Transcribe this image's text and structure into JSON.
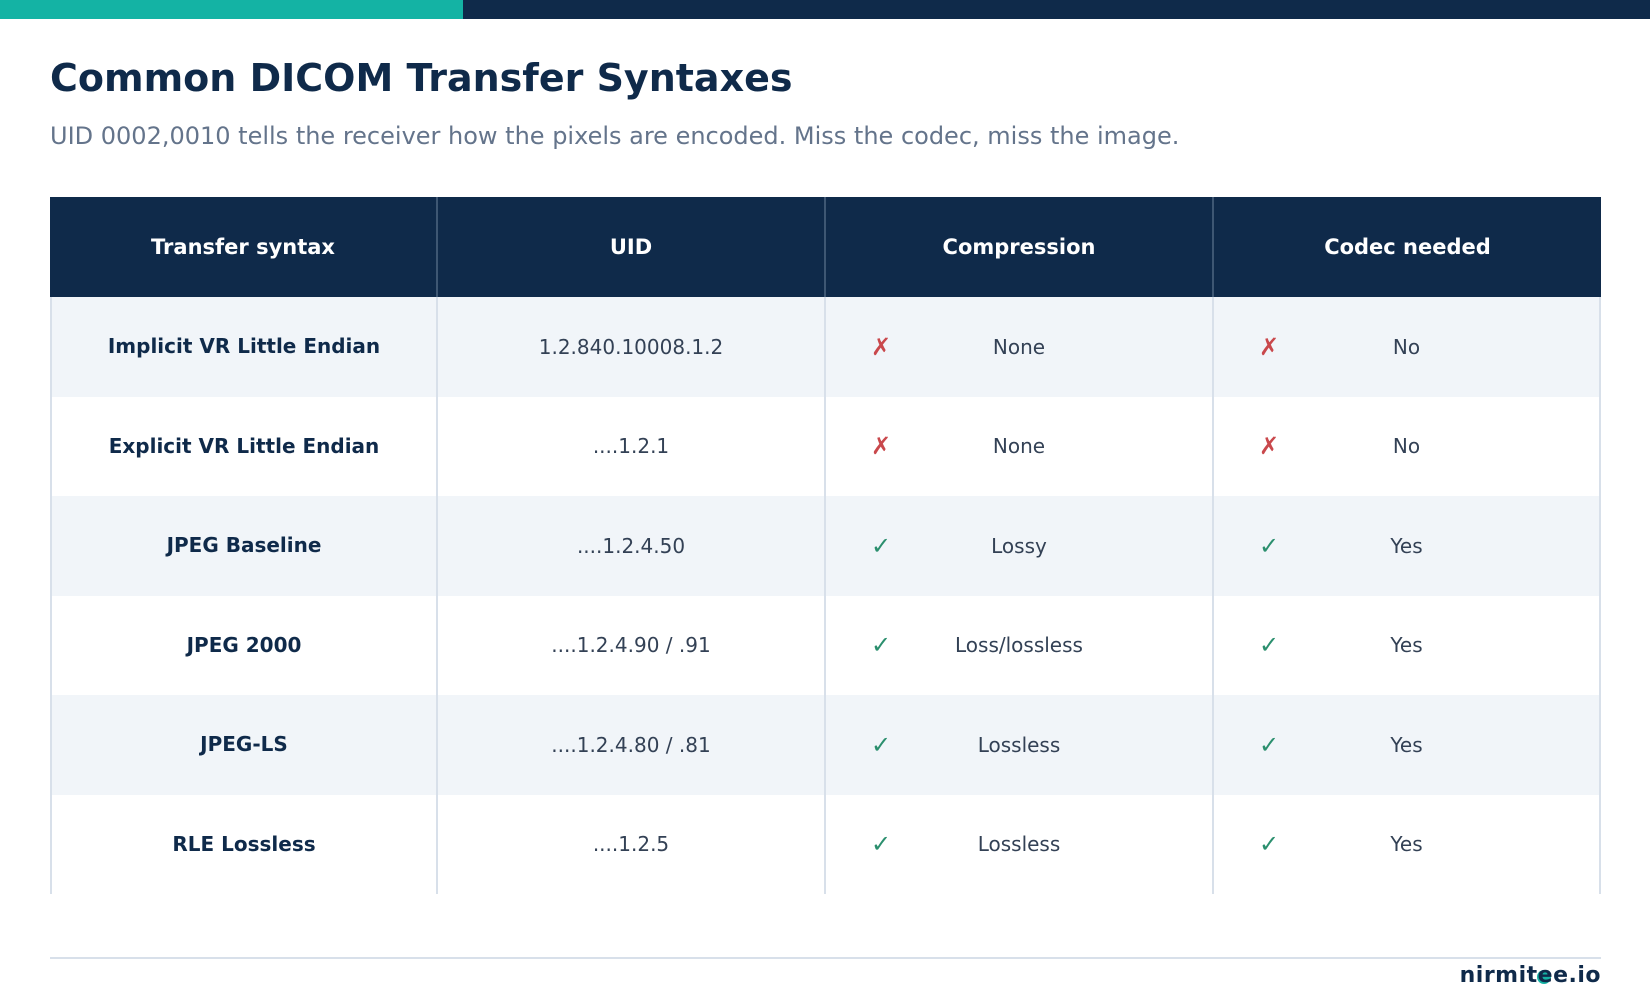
{
  "page": {
    "title": "Common DICOM Transfer Syntaxes",
    "subtitle": "UID 0002,0010 tells the receiver how the pixels are encoded. Miss the codec, miss the image."
  },
  "table": {
    "headers": [
      "Transfer syntax",
      "UID",
      "Compression",
      "Codec needed"
    ],
    "rows": [
      {
        "name": "Implicit VR Little Endian",
        "uid": "1.2.840.10008.1.2",
        "compression_icon": "✗",
        "compression": "None",
        "codec_icon": "✗",
        "codec": "No"
      },
      {
        "name": "Explicit VR Little Endian",
        "uid": "....1.2.1",
        "compression_icon": "✗",
        "compression": "None",
        "codec_icon": "✗",
        "codec": "No"
      },
      {
        "name": "JPEG Baseline",
        "uid": "....1.2.4.50",
        "compression_icon": "✓",
        "compression": "Lossy",
        "codec_icon": "✓",
        "codec": "Yes"
      },
      {
        "name": "JPEG 2000",
        "uid": "....1.2.4.90 / .91",
        "compression_icon": "✓",
        "compression": "Loss/lossless",
        "codec_icon": "✓",
        "codec": "Yes"
      },
      {
        "name": "JPEG-LS",
        "uid": "....1.2.4.80 / .81",
        "compression_icon": "✓",
        "compression": "Lossless",
        "codec_icon": "✓",
        "codec": "Yes"
      },
      {
        "name": "RLE Lossless",
        "uid": "....1.2.5",
        "compression_icon": "✓",
        "compression": "Lossless",
        "codec_icon": "✓",
        "codec": "Yes"
      }
    ]
  },
  "footer": {
    "brand": "nirmitee.io"
  },
  "colors": {
    "navy": "#0f2a4a",
    "teal": "#14b3a4",
    "check": "#2b8f6e",
    "cross": "#c9484c"
  }
}
